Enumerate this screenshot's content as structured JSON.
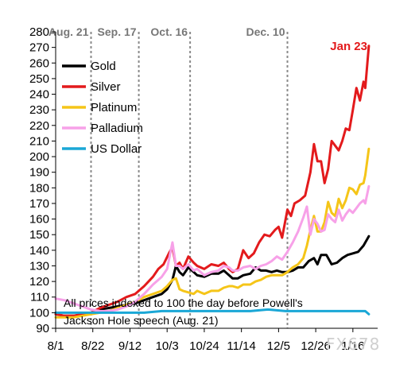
{
  "chart_data": {
    "type": "line",
    "ylim": [
      90,
      280
    ],
    "y_ticks": [
      90,
      100,
      110,
      120,
      130,
      140,
      150,
      160,
      170,
      180,
      190,
      200,
      210,
      220,
      230,
      240,
      250,
      260,
      270,
      280
    ],
    "x_tick_labels": [
      "8/1",
      "8/22",
      "9/12",
      "10/3",
      "10/24",
      "11/14",
      "12/5",
      "12/26",
      "1/16"
    ],
    "x_tick_days": [
      0,
      21,
      42,
      63,
      84,
      105,
      126,
      147,
      168
    ],
    "xlim_days": [
      0,
      182
    ],
    "vertical_markers": [
      {
        "label": "Aug. 21",
        "day": 20
      },
      {
        "label": "Sep. 17",
        "day": 47
      },
      {
        "label": "Oct. 16",
        "day": 76
      },
      {
        "label": "Dec. 10",
        "day": 131
      }
    ],
    "annotation": {
      "text": "Jan 23",
      "color": "#e31a1c"
    },
    "note_lines": [
      "All prices indexed to 100 the day before Powell's",
      "Jackson Hole speech (Aug. 21)"
    ],
    "legend_position": "upper-left",
    "grid": false,
    "series": [
      {
        "name": "Gold",
        "color": "#000000",
        "points": [
          [
            0,
            99
          ],
          [
            5,
            98
          ],
          [
            10,
            98
          ],
          [
            15,
            99
          ],
          [
            20,
            100
          ],
          [
            25,
            102
          ],
          [
            30,
            103
          ],
          [
            35,
            104
          ],
          [
            40,
            105
          ],
          [
            45,
            106
          ],
          [
            50,
            108
          ],
          [
            55,
            110
          ],
          [
            60,
            112
          ],
          [
            63,
            115
          ],
          [
            66,
            121
          ],
          [
            68,
            130
          ],
          [
            70,
            126
          ],
          [
            72,
            124
          ],
          [
            75,
            129
          ],
          [
            78,
            126
          ],
          [
            80,
            124
          ],
          [
            84,
            123
          ],
          [
            88,
            125
          ],
          [
            92,
            125
          ],
          [
            95,
            127
          ],
          [
            98,
            124
          ],
          [
            100,
            122
          ],
          [
            103,
            122
          ],
          [
            106,
            124
          ],
          [
            110,
            125
          ],
          [
            113,
            129
          ],
          [
            116,
            127
          ],
          [
            119,
            127
          ],
          [
            122,
            126
          ],
          [
            125,
            127
          ],
          [
            128,
            126
          ],
          [
            131,
            126
          ],
          [
            134,
            127
          ],
          [
            137,
            129
          ],
          [
            140,
            129
          ],
          [
            143,
            133
          ],
          [
            146,
            135
          ],
          [
            148,
            131
          ],
          [
            150,
            137
          ],
          [
            153,
            137
          ],
          [
            156,
            131
          ],
          [
            159,
            132
          ],
          [
            162,
            135
          ],
          [
            165,
            137
          ],
          [
            168,
            138
          ],
          [
            171,
            139
          ],
          [
            174,
            143
          ],
          [
            177,
            149
          ]
        ]
      },
      {
        "name": "Silver",
        "color": "#e31a1c",
        "points": [
          [
            0,
            99
          ],
          [
            5,
            98
          ],
          [
            10,
            98
          ],
          [
            15,
            99
          ],
          [
            20,
            100
          ],
          [
            25,
            103
          ],
          [
            30,
            105
          ],
          [
            35,
            107
          ],
          [
            40,
            110
          ],
          [
            45,
            112
          ],
          [
            50,
            117
          ],
          [
            55,
            123
          ],
          [
            58,
            128
          ],
          [
            61,
            131
          ],
          [
            64,
            138
          ],
          [
            66,
            142
          ],
          [
            68,
            130
          ],
          [
            70,
            132
          ],
          [
            72,
            128
          ],
          [
            75,
            136
          ],
          [
            78,
            132
          ],
          [
            80,
            130
          ],
          [
            84,
            128
          ],
          [
            88,
            131
          ],
          [
            92,
            130
          ],
          [
            95,
            132
          ],
          [
            98,
            128
          ],
          [
            100,
            126
          ],
          [
            103,
            128
          ],
          [
            106,
            140
          ],
          [
            109,
            135
          ],
          [
            112,
            138
          ],
          [
            115,
            145
          ],
          [
            118,
            150
          ],
          [
            121,
            149
          ],
          [
            124,
            153
          ],
          [
            126,
            155
          ],
          [
            128,
            148
          ],
          [
            131,
            166
          ],
          [
            133,
            162
          ],
          [
            135,
            170
          ],
          [
            138,
            172
          ],
          [
            141,
            175
          ],
          [
            144,
            190
          ],
          [
            146,
            208
          ],
          [
            148,
            197
          ],
          [
            150,
            197
          ],
          [
            152,
            183
          ],
          [
            154,
            192
          ],
          [
            156,
            210
          ],
          [
            158,
            207
          ],
          [
            160,
            204
          ],
          [
            162,
            210
          ],
          [
            164,
            218
          ],
          [
            166,
            217
          ],
          [
            168,
            230
          ],
          [
            170,
            244
          ],
          [
            172,
            236
          ],
          [
            174,
            248
          ],
          [
            175,
            244
          ],
          [
            177,
            271
          ]
        ]
      },
      {
        "name": "Platinum",
        "color": "#f5c518",
        "points": [
          [
            0,
            97
          ],
          [
            5,
            97
          ],
          [
            10,
            97
          ],
          [
            15,
            98
          ],
          [
            20,
            99
          ],
          [
            25,
            100
          ],
          [
            30,
            101
          ],
          [
            35,
            103
          ],
          [
            40,
            105
          ],
          [
            45,
            107
          ],
          [
            50,
            110
          ],
          [
            55,
            112
          ],
          [
            60,
            114
          ],
          [
            63,
            117
          ],
          [
            66,
            121
          ],
          [
            68,
            122
          ],
          [
            70,
            115
          ],
          [
            72,
            114
          ],
          [
            75,
            113
          ],
          [
            78,
            112
          ],
          [
            80,
            114
          ],
          [
            84,
            112
          ],
          [
            88,
            114
          ],
          [
            92,
            114
          ],
          [
            95,
            116
          ],
          [
            98,
            117
          ],
          [
            100,
            117
          ],
          [
            103,
            116
          ],
          [
            106,
            118
          ],
          [
            110,
            118
          ],
          [
            113,
            120
          ],
          [
            116,
            121
          ],
          [
            119,
            123
          ],
          [
            122,
            124
          ],
          [
            125,
            124
          ],
          [
            128,
            124
          ],
          [
            131,
            126
          ],
          [
            134,
            129
          ],
          [
            137,
            131
          ],
          [
            140,
            135
          ],
          [
            142,
            143
          ],
          [
            144,
            153
          ],
          [
            146,
            162
          ],
          [
            148,
            152
          ],
          [
            150,
            152
          ],
          [
            152,
            158
          ],
          [
            154,
            171
          ],
          [
            156,
            164
          ],
          [
            158,
            162
          ],
          [
            160,
            173
          ],
          [
            162,
            167
          ],
          [
            164,
            172
          ],
          [
            166,
            180
          ],
          [
            168,
            179
          ],
          [
            170,
            176
          ],
          [
            172,
            182
          ],
          [
            174,
            183
          ],
          [
            175,
            188
          ],
          [
            177,
            205
          ]
        ]
      },
      {
        "name": "Palladium",
        "color": "#f7a1e8",
        "points": [
          [
            0,
            109
          ],
          [
            5,
            108
          ],
          [
            10,
            106
          ],
          [
            15,
            104
          ],
          [
            20,
            102
          ],
          [
            25,
            101
          ],
          [
            30,
            101
          ],
          [
            35,
            102
          ],
          [
            40,
            104
          ],
          [
            45,
            107
          ],
          [
            50,
            112
          ],
          [
            55,
            118
          ],
          [
            60,
            123
          ],
          [
            63,
            128
          ],
          [
            66,
            145
          ],
          [
            68,
            130
          ],
          [
            70,
            130
          ],
          [
            72,
            128
          ],
          [
            75,
            131
          ],
          [
            78,
            127
          ],
          [
            80,
            128
          ],
          [
            84,
            124
          ],
          [
            88,
            126
          ],
          [
            92,
            127
          ],
          [
            95,
            130
          ],
          [
            98,
            129
          ],
          [
            100,
            127
          ],
          [
            103,
            127
          ],
          [
            106,
            129
          ],
          [
            110,
            130
          ],
          [
            113,
            128
          ],
          [
            116,
            130
          ],
          [
            119,
            131
          ],
          [
            122,
            133
          ],
          [
            125,
            136
          ],
          [
            128,
            134
          ],
          [
            131,
            139
          ],
          [
            134,
            145
          ],
          [
            137,
            152
          ],
          [
            140,
            161
          ],
          [
            142,
            168
          ],
          [
            144,
            150
          ],
          [
            146,
            160
          ],
          [
            148,
            157
          ],
          [
            150,
            152
          ],
          [
            152,
            153
          ],
          [
            154,
            163
          ],
          [
            156,
            160
          ],
          [
            158,
            158
          ],
          [
            160,
            166
          ],
          [
            162,
            159
          ],
          [
            164,
            163
          ],
          [
            166,
            166
          ],
          [
            168,
            164
          ],
          [
            170,
            167
          ],
          [
            172,
            170
          ],
          [
            174,
            172
          ],
          [
            175,
            170
          ],
          [
            177,
            181
          ]
        ]
      },
      {
        "name": "US Dollar",
        "color": "#1aa7d6",
        "points": [
          [
            0,
            100
          ],
          [
            10,
            100
          ],
          [
            20,
            100
          ],
          [
            30,
            100
          ],
          [
            40,
            100
          ],
          [
            50,
            100
          ],
          [
            60,
            101
          ],
          [
            70,
            101
          ],
          [
            80,
            101
          ],
          [
            90,
            101
          ],
          [
            100,
            101
          ],
          [
            110,
            101
          ],
          [
            120,
            102
          ],
          [
            130,
            101
          ],
          [
            140,
            101
          ],
          [
            150,
            101
          ],
          [
            160,
            101
          ],
          [
            170,
            101
          ],
          [
            175,
            101
          ],
          [
            177,
            99
          ]
        ]
      }
    ]
  }
}
